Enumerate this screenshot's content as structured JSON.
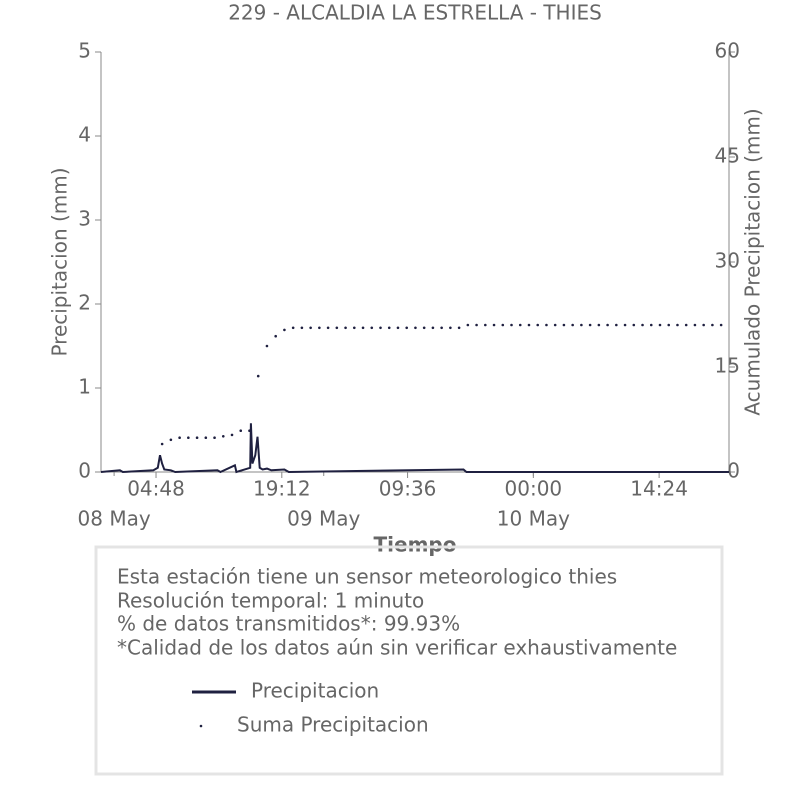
{
  "chart_data": {
    "type": "line",
    "title": "229 - ALCALDIA LA ESTRELLA - THIES",
    "xlabel": "Tiempo",
    "ylabel": "Precipitacion (mm)",
    "y2label": "Acumulado Precipitacion (mm)",
    "xlim": [
      "07 May 22:30",
      "10 May 22:24"
    ],
    "xticks": [
      {
        "value": "08 May 04:48",
        "label": "04:48"
      },
      {
        "value": "08 May 19:12",
        "label": "19:12"
      },
      {
        "value": "09 May 09:36",
        "label": "09:36"
      },
      {
        "value": "10 May 00:00",
        "label": "00:00"
      },
      {
        "value": "10 May 14:24",
        "label": "14:24"
      }
    ],
    "date_ticks": [
      {
        "value": "08 May 00:00",
        "label": "08 May"
      },
      {
        "value": "09 May 00:00",
        "label": "09 May"
      },
      {
        "value": "10 May 00:00",
        "label": "10 May"
      }
    ],
    "ylim": [
      0,
      5
    ],
    "yticks": [
      0,
      1,
      2,
      3,
      4,
      5
    ],
    "y2lim": [
      0,
      60
    ],
    "y2ticks": [
      0,
      15,
      30,
      45,
      60
    ],
    "series": [
      {
        "name": "Precipitacion",
        "color": "#1f2040",
        "style": "line",
        "x": [
          "07 May 22:30",
          "08 May 00:40",
          "08 May 01:00",
          "08 May 04:30",
          "08 May 05:00",
          "08 May 05:15",
          "08 May 05:30",
          "08 May 05:45",
          "08 May 06:30",
          "08 May 07:00",
          "08 May 11:50",
          "08 May 12:10",
          "08 May 13:50",
          "08 May 14:00",
          "08 May 15:35",
          "08 May 15:40",
          "08 May 15:50",
          "08 May 16:10",
          "08 May 16:25",
          "08 May 16:40",
          "08 May 17:00",
          "08 May 17:30",
          "08 May 18:00",
          "08 May 19:30",
          "08 May 20:00",
          "09 May 16:00",
          "09 May 16:20",
          "10 May 22:24"
        ],
        "values": [
          0,
          0.02,
          0,
          0.02,
          0.05,
          0.2,
          0.1,
          0.03,
          0.02,
          0,
          0.02,
          0,
          0.08,
          0,
          0.05,
          0.58,
          0.1,
          0.2,
          0.42,
          0.05,
          0.03,
          0.04,
          0.02,
          0.03,
          0,
          0.03,
          0,
          0
        ]
      },
      {
        "name": "Suma Precipitacion",
        "color": "#1f2040",
        "style": "dots",
        "axis": "y2",
        "x": [
          "08 May 05:30",
          "08 May 06:30",
          "08 May 07:30",
          "08 May 08:30",
          "08 May 09:30",
          "08 May 10:30",
          "08 May 11:30",
          "08 May 12:30",
          "08 May 13:30",
          "08 May 14:30",
          "08 May 15:30",
          "08 May 16:30",
          "08 May 17:30",
          "08 May 18:30",
          "08 May 19:30",
          "08 May 20:30",
          "08 May 21:30",
          "08 May 22:30",
          "08 May 23:30",
          "09 May 00:30",
          "09 May 01:30",
          "09 May 02:30",
          "09 May 03:30",
          "09 May 04:30",
          "09 May 05:30",
          "09 May 06:30",
          "09 May 07:30",
          "09 May 08:30",
          "09 May 09:30",
          "09 May 10:30",
          "09 May 11:30",
          "09 May 12:30",
          "09 May 13:30",
          "09 May 14:30",
          "09 May 15:30",
          "09 May 16:30",
          "09 May 17:30",
          "09 May 18:30",
          "09 May 19:30",
          "09 May 20:30",
          "09 May 21:30",
          "09 May 22:30",
          "09 May 23:30",
          "10 May 00:30",
          "10 May 01:30",
          "10 May 02:30",
          "10 May 03:30",
          "10 May 04:30",
          "10 May 05:30",
          "10 May 06:30",
          "10 May 07:30",
          "10 May 08:30",
          "10 May 09:30",
          "10 May 10:30",
          "10 May 11:30",
          "10 May 12:30",
          "10 May 13:30",
          "10 May 14:30",
          "10 May 15:30",
          "10 May 16:30",
          "10 May 17:30",
          "10 May 18:30",
          "10 May 19:30",
          "10 May 20:30",
          "10 May 21:30"
        ],
        "values": [
          4.0,
          4.6,
          4.9,
          4.9,
          4.9,
          4.9,
          4.9,
          5.1,
          5.3,
          5.9,
          5.9,
          13.7,
          18.0,
          19.4,
          20.3,
          20.6,
          20.6,
          20.6,
          20.6,
          20.6,
          20.6,
          20.6,
          20.6,
          20.6,
          20.6,
          20.6,
          20.6,
          20.6,
          20.6,
          20.6,
          20.6,
          20.6,
          20.6,
          20.6,
          20.6,
          21.0,
          21.0,
          21.0,
          21.0,
          21.0,
          21.0,
          21.0,
          21.0,
          21.0,
          21.0,
          21.0,
          21.0,
          21.0,
          21.0,
          21.0,
          21.0,
          21.0,
          21.0,
          21.0,
          21.0,
          21.0,
          21.0,
          21.0,
          21.0,
          21.0,
          21.0,
          21.0,
          21.0,
          21.0,
          21.0
        ]
      }
    ],
    "notes": [
      "Esta estación tiene un sensor meteorologico thies",
      "Resolución temporal: 1 minuto",
      "% de datos transmitidos*: 99.93%",
      "*Calidad de los datos aún sin verificar exhaustivamente"
    ]
  }
}
